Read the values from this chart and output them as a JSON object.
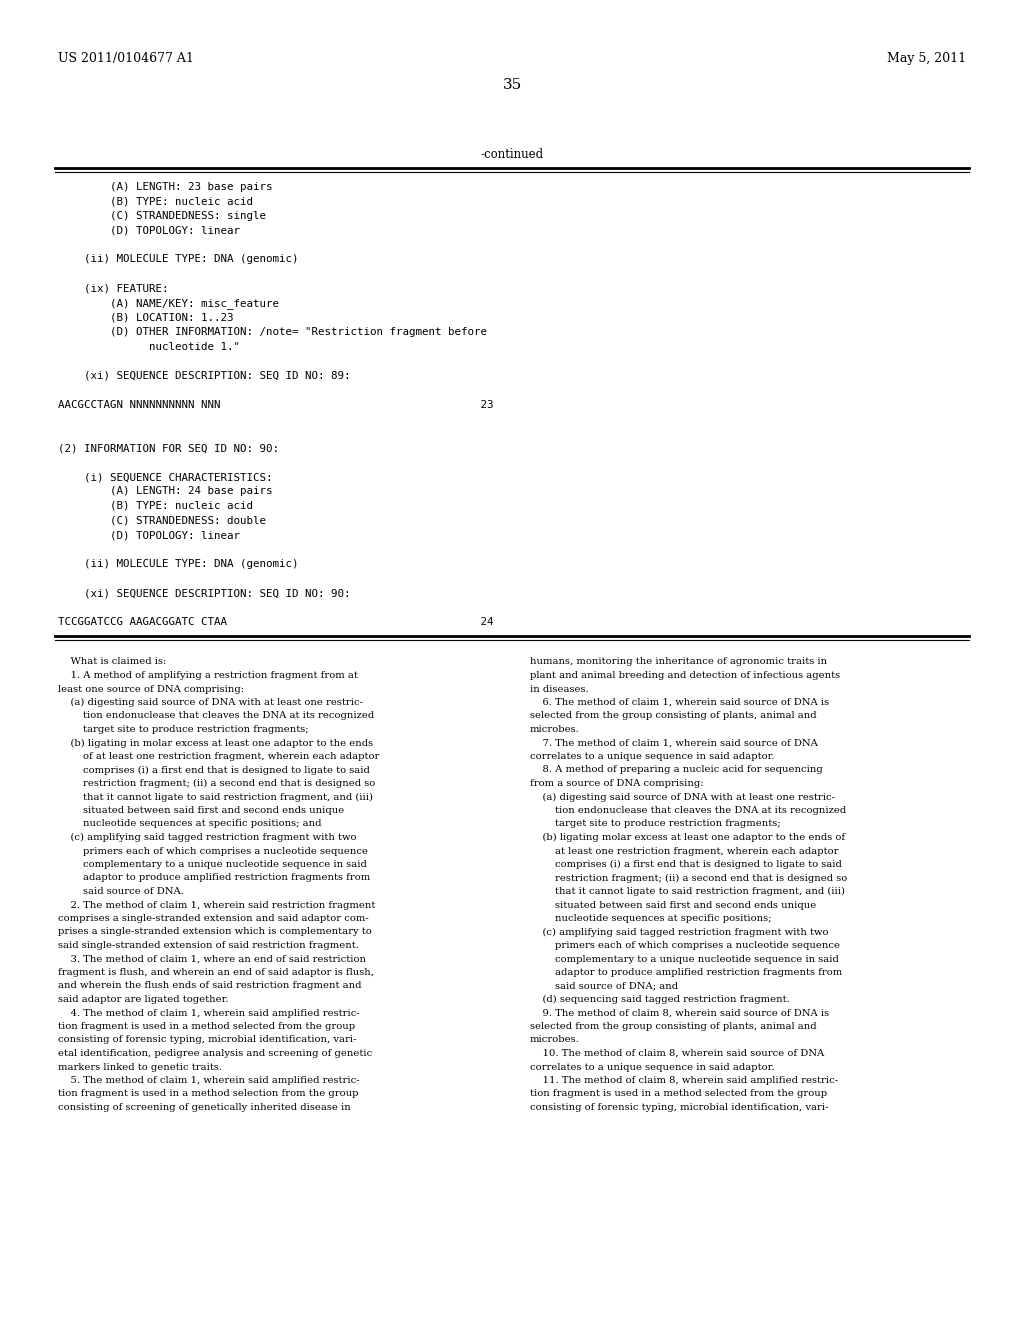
{
  "header_left": "US 2011/0104677 A1",
  "header_right": "May 5, 2011",
  "page_number": "35",
  "continued_label": "-continued",
  "background_color": "#ffffff",
  "text_color": "#000000",
  "mono_lines": [
    "        (A) LENGTH: 23 base pairs",
    "        (B) TYPE: nucleic acid",
    "        (C) STRANDEDNESS: single",
    "        (D) TOPOLOGY: linear",
    "",
    "    (ii) MOLECULE TYPE: DNA (genomic)",
    "",
    "    (ix) FEATURE:",
    "        (A) NAME/KEY: misc_feature",
    "        (B) LOCATION: 1..23",
    "        (D) OTHER INFORMATION: /note= \"Restriction fragment before",
    "              nucleotide 1.\"",
    "",
    "    (xi) SEQUENCE DESCRIPTION: SEQ ID NO: 89:",
    "",
    "AACGCCTAGN NNNNNNNNNN NNN                                        23",
    "",
    "",
    "(2) INFORMATION FOR SEQ ID NO: 90:",
    "",
    "    (i) SEQUENCE CHARACTERISTICS:",
    "        (A) LENGTH: 24 base pairs",
    "        (B) TYPE: nucleic acid",
    "        (C) STRANDEDNESS: double",
    "        (D) TOPOLOGY: linear",
    "",
    "    (ii) MOLECULE TYPE: DNA (genomic)",
    "",
    "    (xi) SEQUENCE DESCRIPTION: SEQ ID NO: 90:",
    "",
    "TCCGGATCCG AAGACGGATC CTAA                                       24"
  ],
  "left_col_text": [
    "    What is claimed is:",
    "    1. A method of amplifying a restriction fragment from at",
    "least one source of DNA comprising:",
    "    (a) digesting said source of DNA with at least one restric-",
    "        tion endonuclease that cleaves the DNA at its recognized",
    "        target site to produce restriction fragments;",
    "    (b) ligating in molar excess at least one adaptor to the ends",
    "        of at least one restriction fragment, wherein each adaptor",
    "        comprises (i) a first end that is designed to ligate to said",
    "        restriction fragment; (ii) a second end that is designed so",
    "        that it cannot ligate to said restriction fragment, and (iii)",
    "        situated between said first and second ends unique",
    "        nucleotide sequences at specific positions; and",
    "    (c) amplifying said tagged restriction fragment with two",
    "        primers each of which comprises a nucleotide sequence",
    "        complementary to a unique nucleotide sequence in said",
    "        adaptor to produce amplified restriction fragments from",
    "        said source of DNA.",
    "    2. The method of claim 1, wherein said restriction fragment",
    "comprises a single-stranded extension and said adaptor com-",
    "prises a single-stranded extension which is complementary to",
    "said single-stranded extension of said restriction fragment.",
    "    3. The method of claim 1, where an end of said restriction",
    "fragment is flush, and wherein an end of said adaptor is flush,",
    "and wherein the flush ends of said restriction fragment and",
    "said adaptor are ligated together.",
    "    4. The method of claim 1, wherein said amplified restric-",
    "tion fragment is used in a method selected from the group",
    "consisting of forensic typing, microbial identification, vari-",
    "etal identification, pedigree analysis and screening of genetic",
    "markers linked to genetic traits.",
    "    5. The method of claim 1, wherein said amplified restric-",
    "tion fragment is used in a method selection from the group",
    "consisting of screening of genetically inherited disease in"
  ],
  "right_col_text": [
    "humans, monitoring the inheritance of agronomic traits in",
    "plant and animal breeding and detection of infectious agents",
    "in diseases.",
    "    6. The method of claim 1, wherein said source of DNA is",
    "selected from the group consisting of plants, animal and",
    "microbes.",
    "    7. The method of claim 1, wherein said source of DNA",
    "correlates to a unique sequence in said adaptor.",
    "    8. A method of preparing a nucleic acid for sequencing",
    "from a source of DNA comprising:",
    "    (a) digesting said source of DNA with at least one restric-",
    "        tion endonuclease that cleaves the DNA at its recognized",
    "        target site to produce restriction fragments;",
    "    (b) ligating molar excess at least one adaptor to the ends of",
    "        at least one restriction fragment, wherein each adaptor",
    "        comprises (i) a first end that is designed to ligate to said",
    "        restriction fragment; (ii) a second end that is designed so",
    "        that it cannot ligate to said restriction fragment, and (iii)",
    "        situated between said first and second ends unique",
    "        nucleotide sequences at specific positions;",
    "    (c) amplifying said tagged restriction fragment with two",
    "        primers each of which comprises a nucleotide sequence",
    "        complementary to a unique nucleotide sequence in said",
    "        adaptor to produce amplified restriction fragments from",
    "        said source of DNA; and",
    "    (d) sequencing said tagged restriction fragment.",
    "    9. The method of claim 8, wherein said source of DNA is",
    "selected from the group consisting of plants, animal and",
    "microbes.",
    "    10. The method of claim 8, wherein said source of DNA",
    "correlates to a unique sequence in said adaptor.",
    "    11. The method of claim 8, wherein said amplified restric-",
    "tion fragment is used in a method selected from the group",
    "consisting of forensic typing, microbial identification, vari-"
  ],
  "fig_width": 10.24,
  "fig_height": 13.2,
  "dpi": 100
}
